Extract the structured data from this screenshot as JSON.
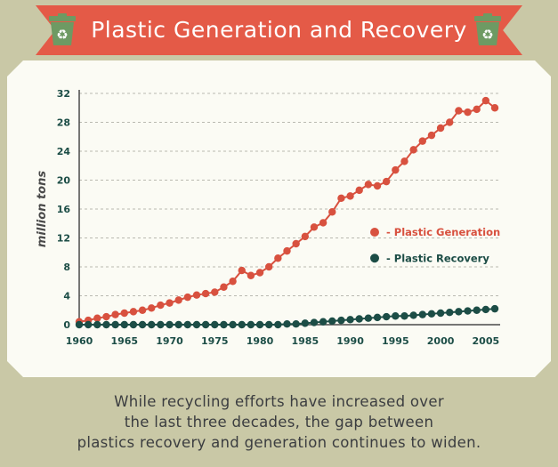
{
  "header": {
    "title": "Plastic Generation and Recovery",
    "left_icon": "recycle-bin-icon",
    "right_icon": "recycle-bin-icon"
  },
  "colors": {
    "ribbon": "#e45a47",
    "generation": "#d8513f",
    "recovery": "#1c4d46",
    "axis_text": "#1c4d46",
    "background": "#c9c8a6"
  },
  "chart_data": {
    "type": "line",
    "title": "",
    "xlabel": "",
    "ylabel": "million tons",
    "xlim": [
      1960,
      2006
    ],
    "ylim": [
      0,
      32
    ],
    "yticks": [
      0,
      4,
      8,
      12,
      16,
      20,
      24,
      28,
      32
    ],
    "xticks": [
      1960,
      1965,
      1970,
      1975,
      1980,
      1985,
      1990,
      1995,
      2000,
      2005
    ],
    "grid": true,
    "legend_position": "right",
    "x": [
      1960,
      1961,
      1962,
      1963,
      1964,
      1965,
      1966,
      1967,
      1968,
      1969,
      1970,
      1971,
      1972,
      1973,
      1974,
      1975,
      1976,
      1977,
      1978,
      1979,
      1980,
      1981,
      1982,
      1983,
      1984,
      1985,
      1986,
      1987,
      1988,
      1989,
      1990,
      1991,
      1992,
      1993,
      1994,
      1995,
      1996,
      1997,
      1998,
      1999,
      2000,
      2001,
      2002,
      2003,
      2004,
      2005,
      2006
    ],
    "series": [
      {
        "name": "- Plastic Generation",
        "values": [
          0.4,
          0.6,
          0.9,
          1.1,
          1.4,
          1.6,
          1.8,
          2.0,
          2.3,
          2.7,
          3.0,
          3.4,
          3.8,
          4.1,
          4.3,
          4.5,
          5.2,
          6.0,
          7.5,
          6.8,
          7.2,
          8.0,
          9.2,
          10.2,
          11.2,
          12.2,
          13.5,
          14.1,
          15.6,
          17.5,
          17.8,
          18.6,
          19.4,
          19.2,
          19.8,
          21.4,
          22.6,
          24.2,
          25.4,
          26.2,
          27.2,
          28.0,
          29.6,
          29.4,
          29.8,
          31.0,
          30.0
        ]
      },
      {
        "name": "- Plastic Recovery",
        "values": [
          0,
          0,
          0,
          0,
          0,
          0,
          0,
          0,
          0,
          0,
          0,
          0,
          0,
          0,
          0,
          0,
          0,
          0,
          0,
          0,
          0,
          0,
          0,
          0.1,
          0.1,
          0.2,
          0.3,
          0.4,
          0.5,
          0.6,
          0.7,
          0.8,
          0.9,
          1.0,
          1.1,
          1.2,
          1.2,
          1.3,
          1.4,
          1.5,
          1.6,
          1.7,
          1.8,
          1.9,
          2.0,
          2.1,
          2.2
        ]
      }
    ]
  },
  "caption": {
    "line1": "While recycling efforts have increased over",
    "line2": "the last three decades, the gap between",
    "line3": "plastics recovery and generation continues to widen."
  }
}
